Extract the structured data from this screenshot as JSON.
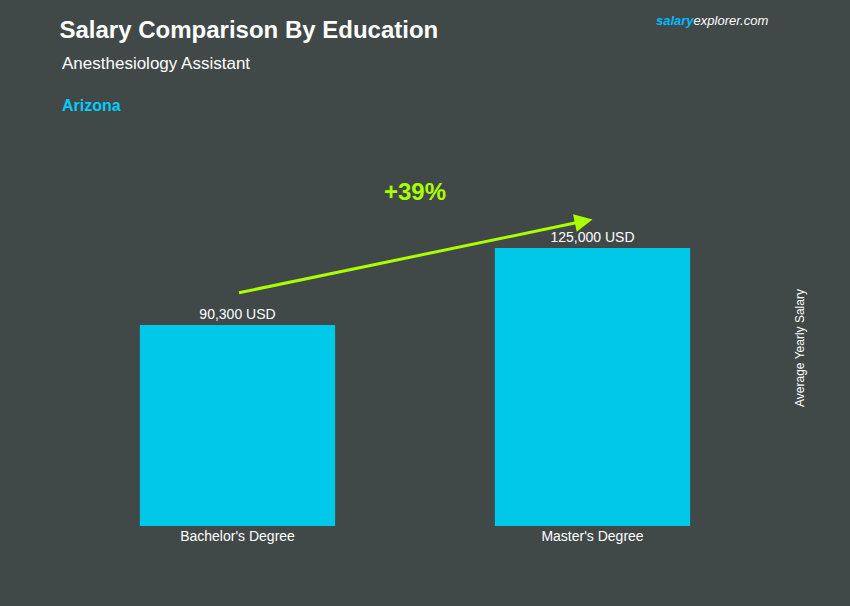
{
  "chart_data": {
    "type": "bar",
    "title": "Salary Comparison By Education",
    "subtitle": "Anesthesiology Assistant",
    "ylabel": "Average Yearly Salary",
    "categories": [
      "Bachelor's Degree",
      "Master's Degree"
    ],
    "values": [
      90300,
      125000
    ],
    "value_labels": [
      "90,300 USD",
      "125,000 USD"
    ],
    "data_labels": true,
    "color": "#00c8e8",
    "ylim": [
      0,
      160000
    ],
    "tick_labels": "x",
    "grid": false,
    "annotations": [
      {
        "text": "Arizona",
        "color": "#00ccff"
      },
      {
        "text": "salary",
        "color": "#00bbff"
      },
      {
        "text": "explorer.com",
        "color": "#ffffff"
      },
      {
        "text": "+39%",
        "color": "#aaff00"
      }
    ]
  }
}
